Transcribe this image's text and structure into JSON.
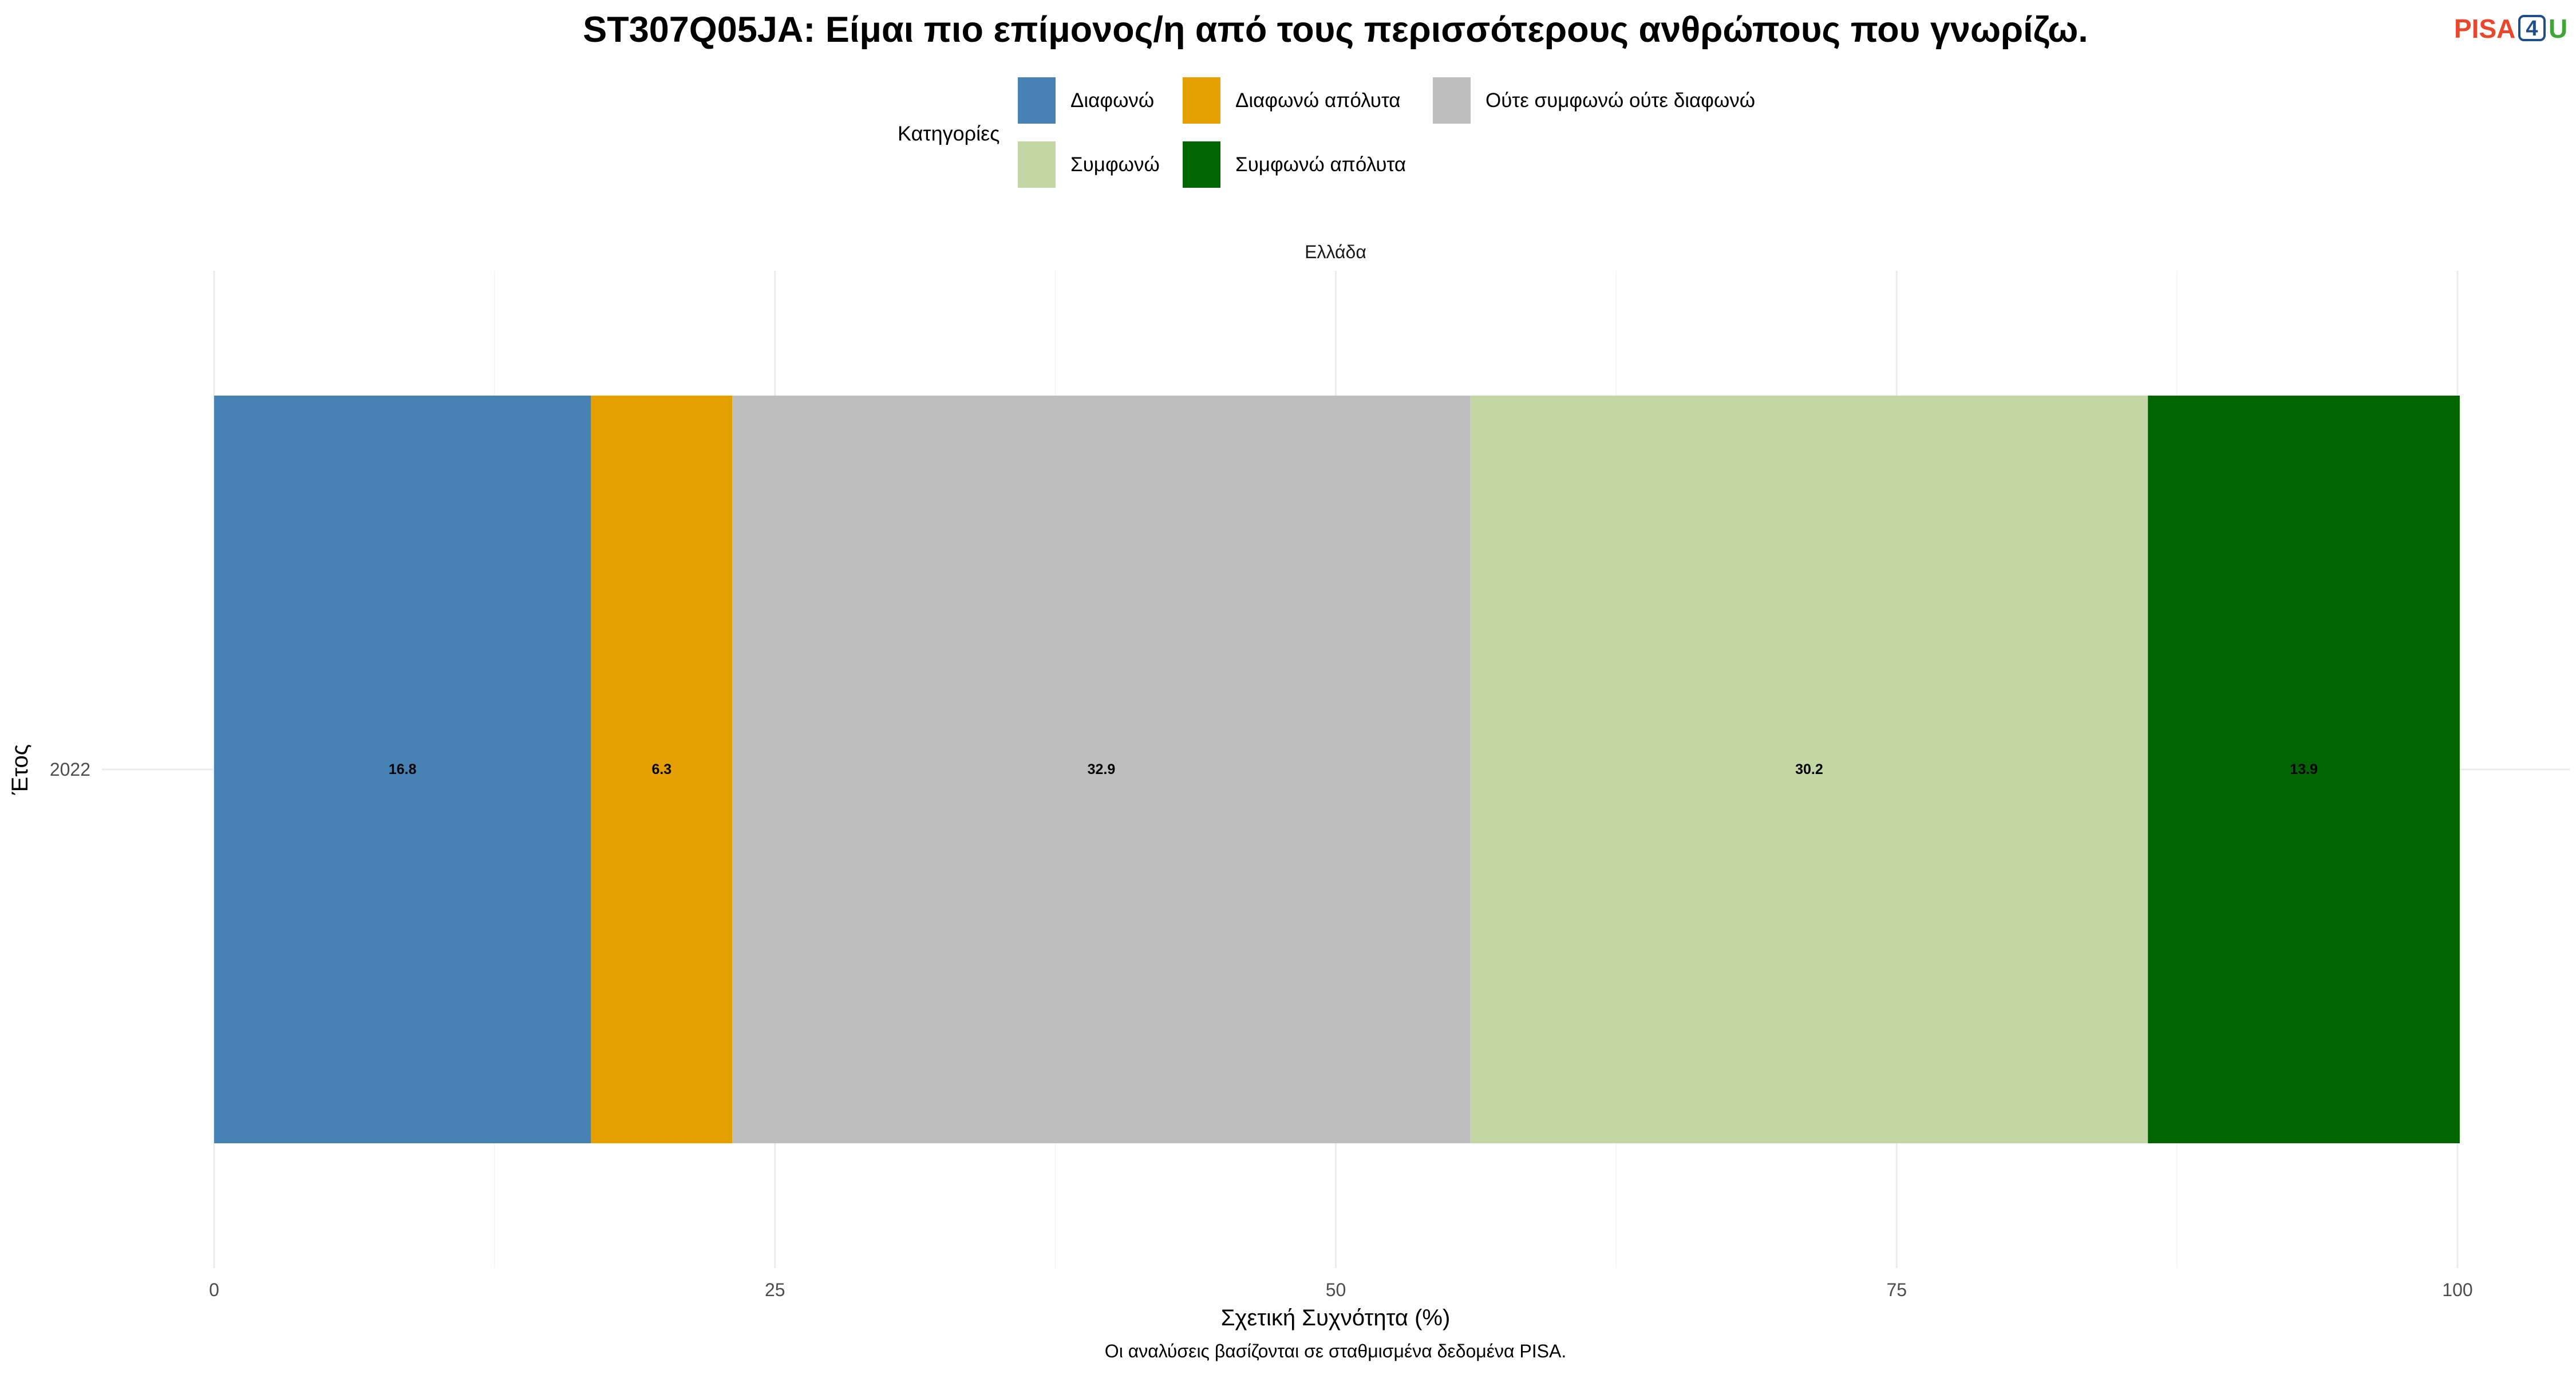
{
  "logo": {
    "part_pisa": "PISA",
    "part_four": "4",
    "part_u": "U",
    "color_pisa": "#E8472C",
    "color_four": "#1F4E8C",
    "color_u": "#3FA535"
  },
  "caption": "Οι αναλύσεις βασίζονται σε σταθμισμένα δεδομένα PISA.",
  "chart_data": {
    "type": "bar",
    "orientation": "horizontal",
    "stacked": true,
    "title": "ST307Q05JA: Είμαι πιο επίμονος/η από τους περισσότερους ανθρώπους που γνωρίζω.",
    "facet": "Ελλάδα",
    "xlabel": "Σχετική Συχνότητα (%)",
    "ylabel": "Έτος",
    "categories": [
      "2022"
    ],
    "xlim": [
      0,
      100
    ],
    "x_ticks": [
      0,
      25,
      50,
      75,
      100
    ],
    "grid": true,
    "legend_title": "Κατηγορίες",
    "legend_position": "top",
    "series": [
      {
        "name": "Διαφωνώ",
        "values": [
          16.8
        ],
        "color": "#4682B4"
      },
      {
        "name": "Διαφωνώ απόλυτα",
        "values": [
          6.3
        ],
        "color": "#E69F00"
      },
      {
        "name": "Ούτε συμφωνώ ούτε διαφωνώ",
        "values": [
          32.9
        ],
        "color": "#BEBEBE"
      },
      {
        "name": "Συμφωνώ",
        "values": [
          30.2
        ],
        "color": "#C3D7A4"
      },
      {
        "name": "Συμφωνώ απόλυτα",
        "values": [
          13.9
        ],
        "color": "#006400"
      }
    ]
  }
}
